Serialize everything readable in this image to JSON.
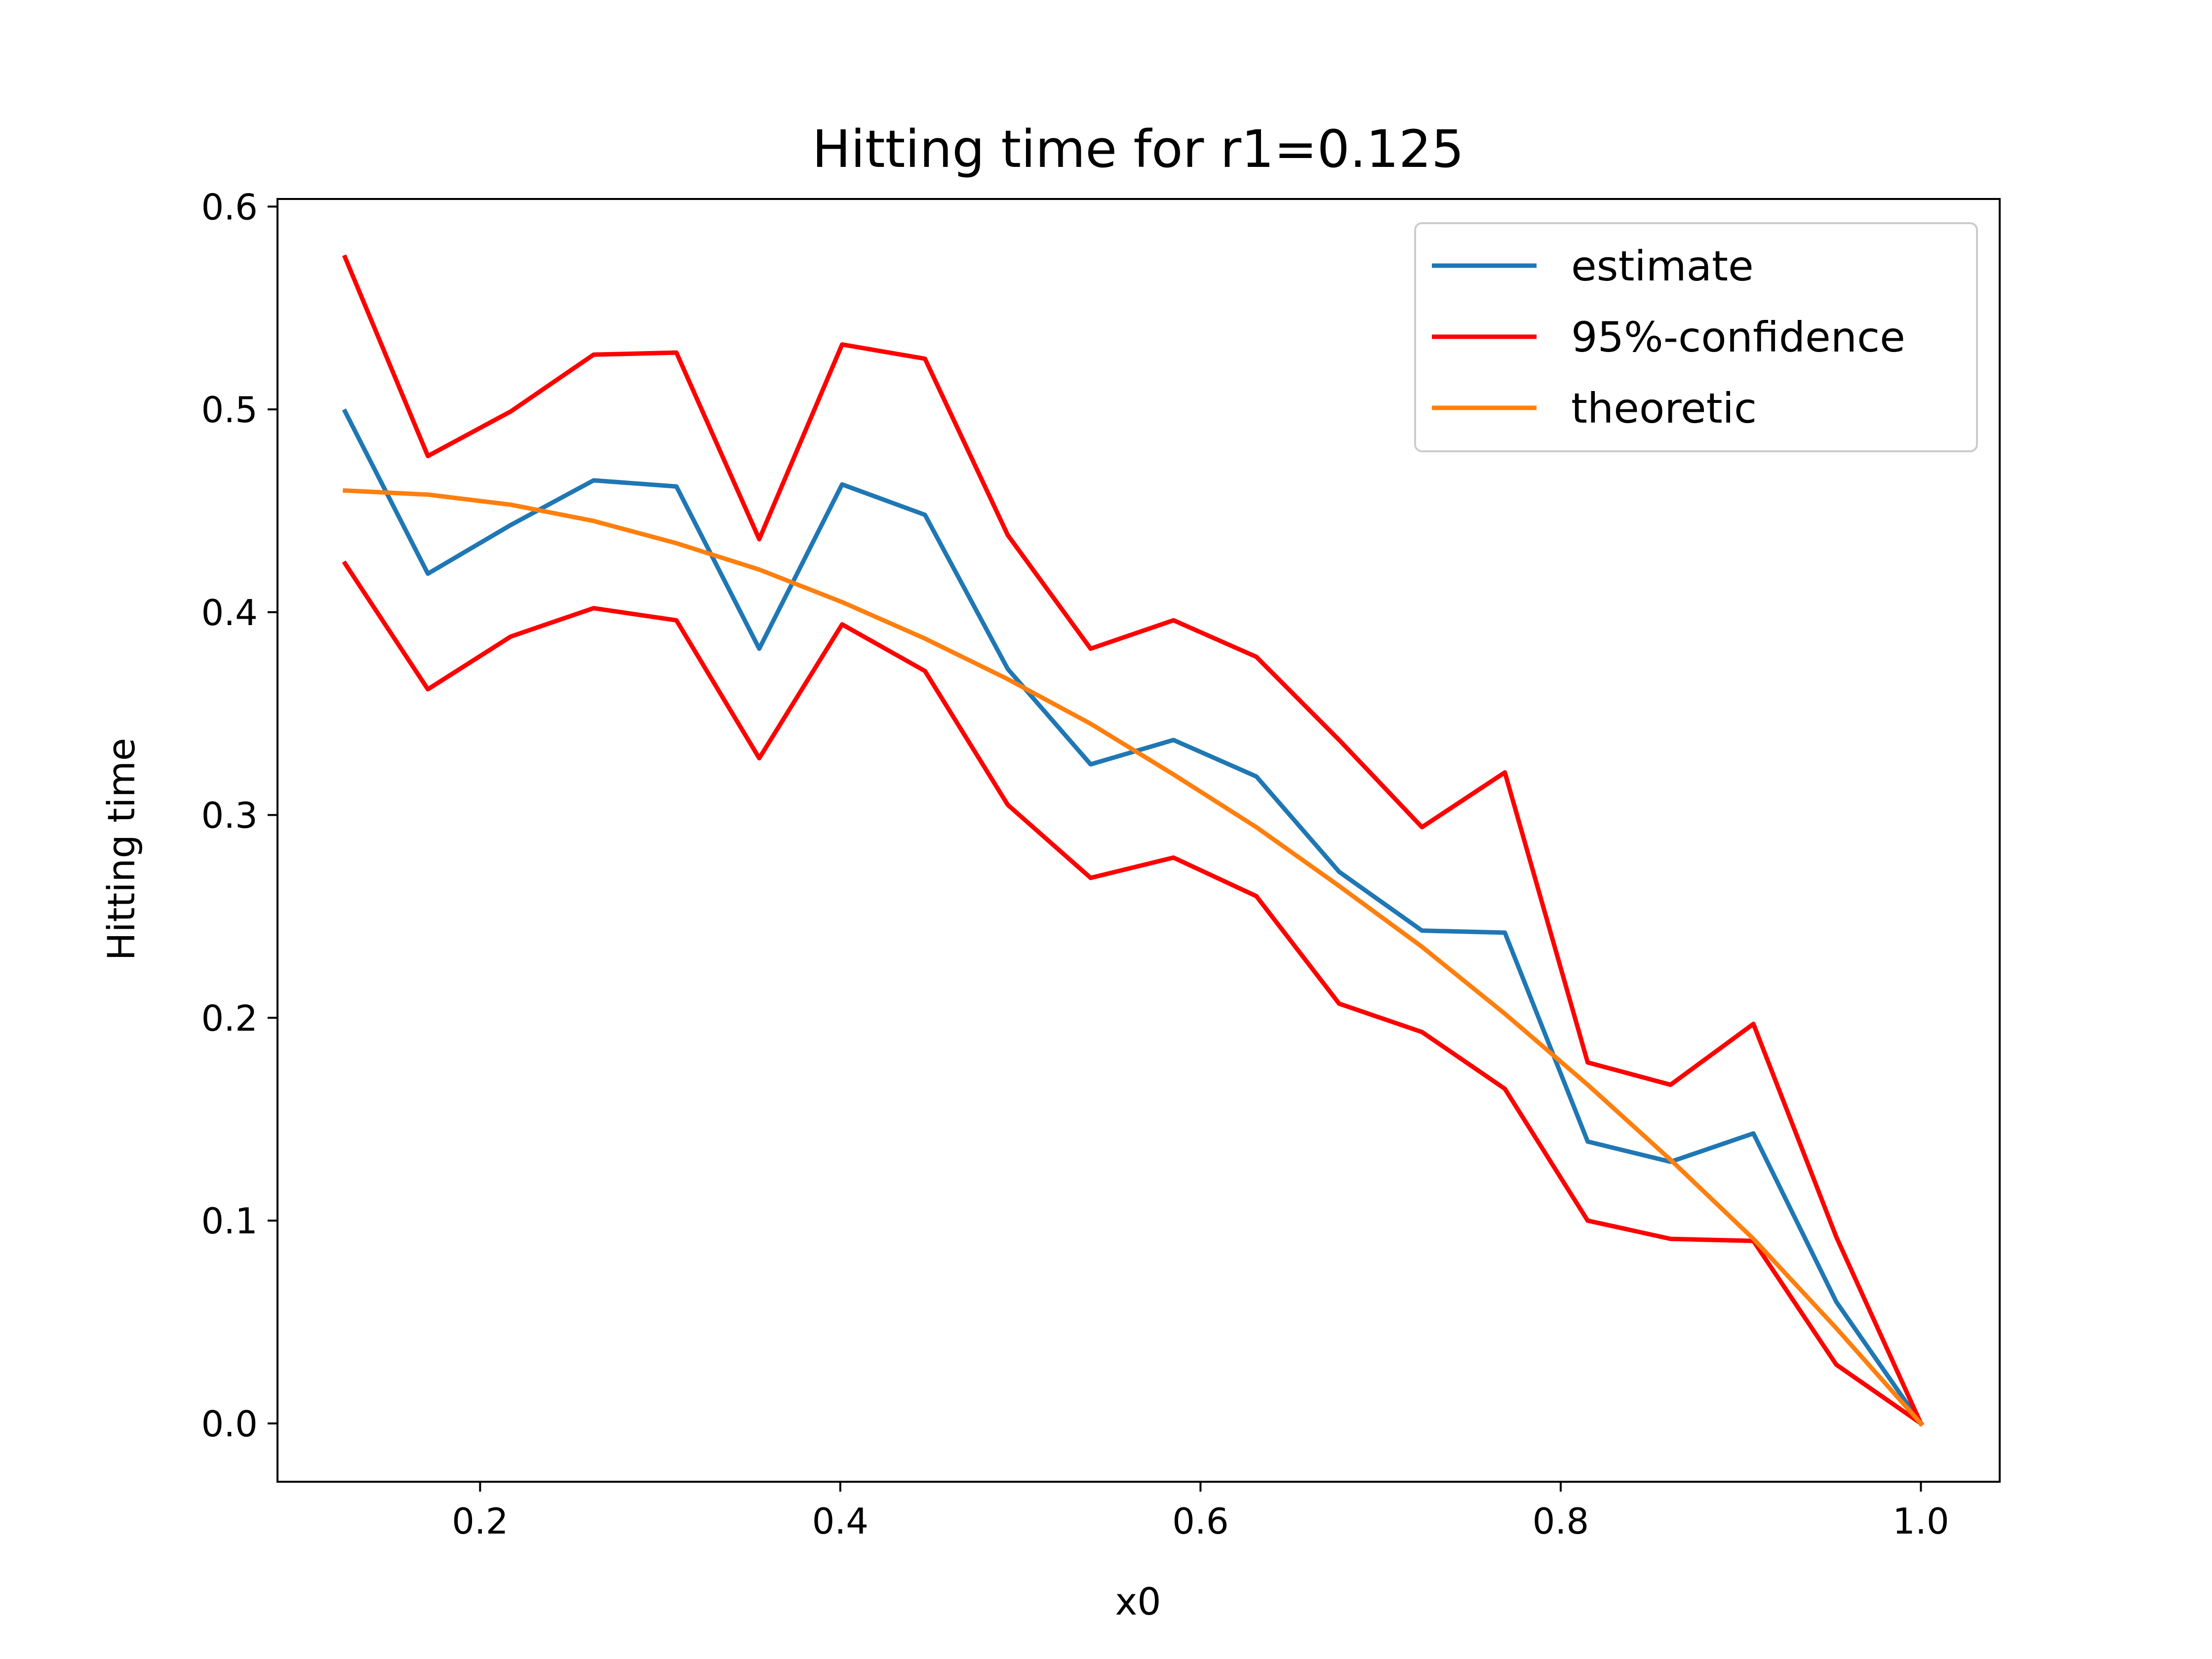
{
  "chart_data": {
    "type": "line",
    "title": "Hitting time for r1=0.125",
    "xlabel": "x0",
    "ylabel": "Hitting time",
    "xlim": [
      0.0875,
      1.04375
    ],
    "ylim": [
      -0.02875,
      0.60375
    ],
    "xticks": [
      0.2,
      0.4,
      0.6,
      0.8,
      1.0
    ],
    "xtick_labels": [
      "0.2",
      "0.4",
      "0.6",
      "0.8",
      "1.0"
    ],
    "yticks": [
      0.0,
      0.1,
      0.2,
      0.3,
      0.4,
      0.5,
      0.6
    ],
    "ytick_labels": [
      "0.0",
      "0.1",
      "0.2",
      "0.3",
      "0.4",
      "0.5",
      "0.6"
    ],
    "grid": false,
    "legend_position": "top-right",
    "x": [
      0.125,
      0.171,
      0.217,
      0.263,
      0.309,
      0.355,
      0.401,
      0.447,
      0.493,
      0.539,
      0.585,
      0.631,
      0.677,
      0.723,
      0.769,
      0.815,
      0.861,
      0.907,
      0.953,
      1.0
    ],
    "series": [
      {
        "name": "estimate",
        "color": "#1f77b4",
        "values": [
          0.499,
          0.419,
          0.443,
          0.465,
          0.462,
          0.382,
          0.463,
          0.448,
          0.372,
          0.325,
          0.337,
          0.319,
          0.272,
          0.243,
          0.242,
          0.139,
          0.129,
          0.143,
          0.06,
          0.0
        ]
      },
      {
        "name": "95%-confidence",
        "color": "#ff0000",
        "values": [
          0.575,
          0.477,
          0.499,
          0.527,
          0.528,
          0.436,
          0.532,
          0.525,
          0.438,
          0.382,
          0.396,
          0.378,
          0.337,
          0.294,
          0.321,
          0.178,
          0.167,
          0.197,
          0.092,
          0.0
        ]
      },
      {
        "name": "",
        "color": "#ff0000",
        "values": [
          0.424,
          0.362,
          0.388,
          0.402,
          0.396,
          0.328,
          0.394,
          0.371,
          0.305,
          0.269,
          0.279,
          0.26,
          0.207,
          0.193,
          0.165,
          0.1,
          0.091,
          0.09,
          0.029,
          0.0
        ]
      },
      {
        "name": "theoretic",
        "color": "#ff7f0e",
        "values": [
          0.46,
          0.458,
          0.453,
          0.445,
          0.434,
          0.421,
          0.405,
          0.387,
          0.367,
          0.345,
          0.32,
          0.294,
          0.265,
          0.235,
          0.202,
          0.167,
          0.13,
          0.091,
          0.047,
          0.0
        ]
      }
    ]
  }
}
